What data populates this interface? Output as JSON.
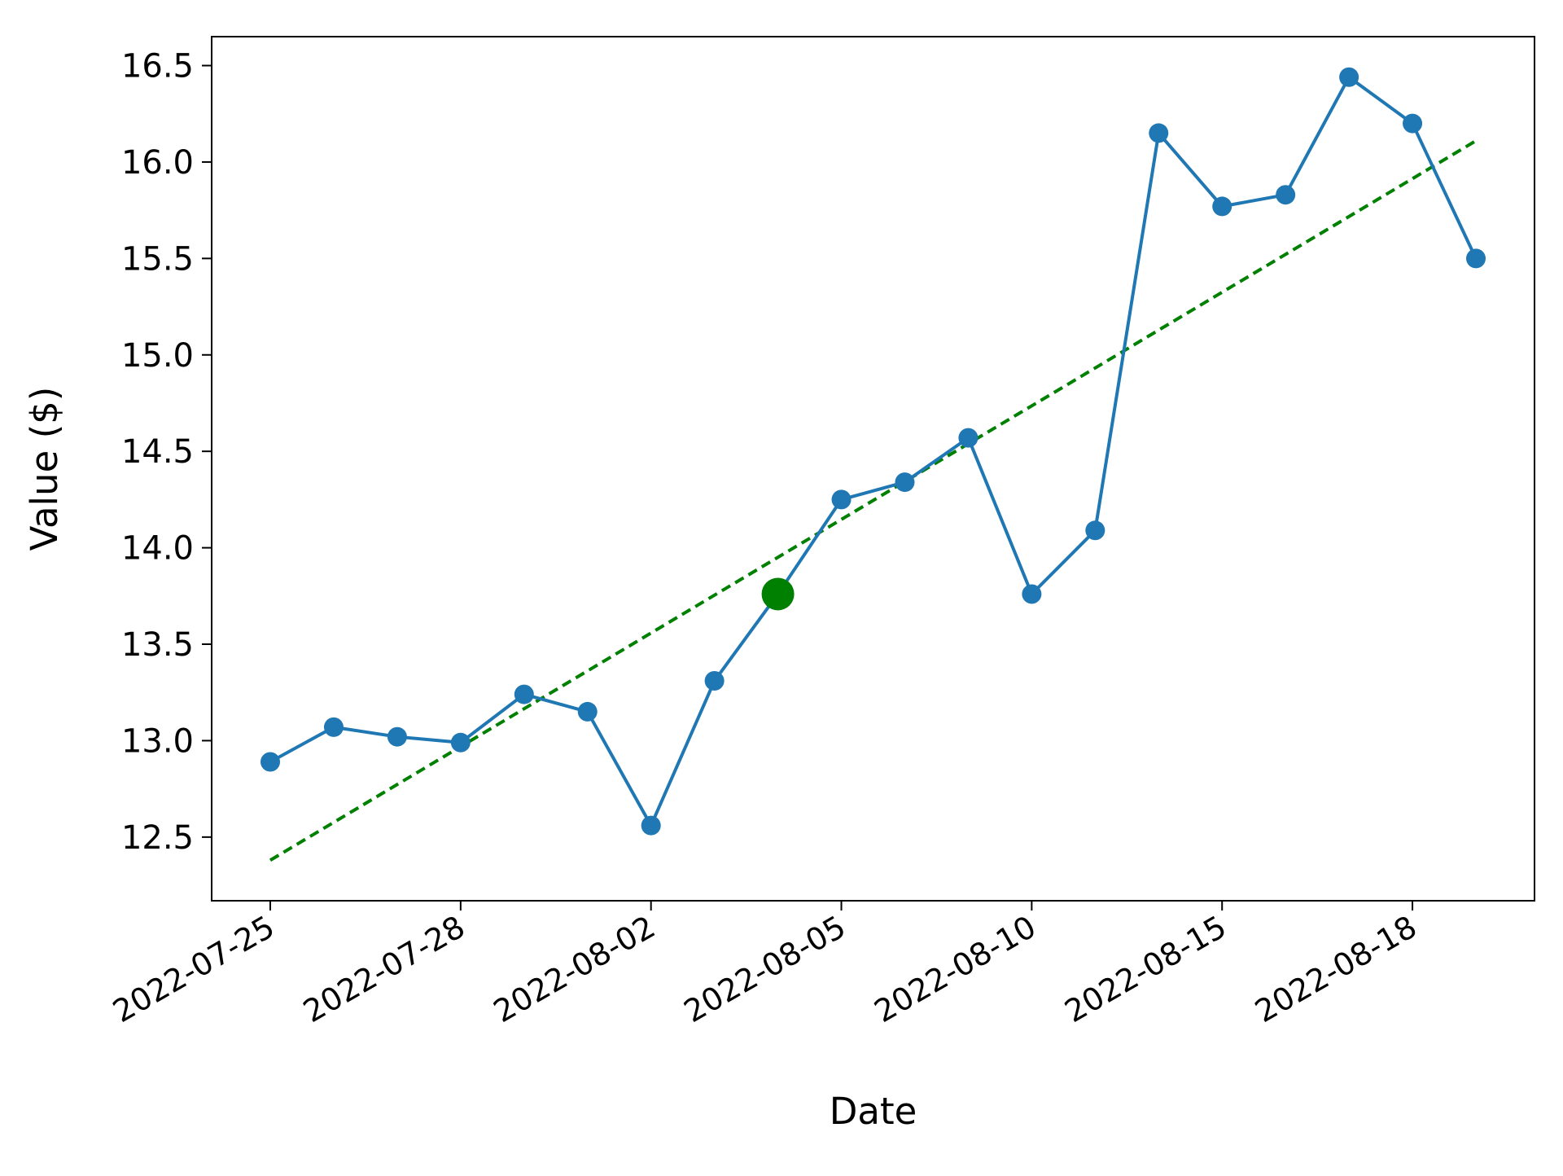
{
  "chart_data": {
    "type": "line",
    "xlabel": "Date",
    "ylabel": "Value ($)",
    "x_ticks": [
      "2022-07-25",
      "2022-07-28",
      "2022-08-02",
      "2022-08-05",
      "2022-08-10",
      "2022-08-15",
      "2022-08-18"
    ],
    "ylim": [
      12.17,
      16.65
    ],
    "y_ticks": [
      "12.5",
      "13.0",
      "13.5",
      "14.0",
      "14.5",
      "15.0",
      "15.5",
      "16.0",
      "16.5"
    ],
    "grid": false,
    "legend": "none",
    "series": [
      {
        "x": [
          "2022-07-25",
          "2022-07-26",
          "2022-07-27",
          "2022-07-28",
          "2022-07-29",
          "2022-08-01",
          "2022-08-02",
          "2022-08-03",
          "2022-08-04",
          "2022-08-05",
          "2022-08-08",
          "2022-08-09",
          "2022-08-10",
          "2022-08-11",
          "2022-08-12",
          "2022-08-15",
          "2022-08-16",
          "2022-08-17",
          "2022-08-18",
          "2022-08-19"
        ],
        "values": [
          12.89,
          13.07,
          13.02,
          12.99,
          13.24,
          13.15,
          12.56,
          13.31,
          13.76,
          14.25,
          14.34,
          14.57,
          13.76,
          14.09,
          16.15,
          15.77,
          15.83,
          16.44,
          16.2,
          15.5
        ],
        "style": "solid line with circle markers",
        "color": "#1f77b4"
      },
      {
        "x": [
          "2022-07-25",
          "2022-08-19"
        ],
        "values": [
          12.38,
          16.11
        ],
        "style": "dashed trend line",
        "color": "#008000"
      }
    ],
    "highlight": {
      "x": "2022-08-04",
      "value": 13.76,
      "color": "#008000"
    }
  }
}
